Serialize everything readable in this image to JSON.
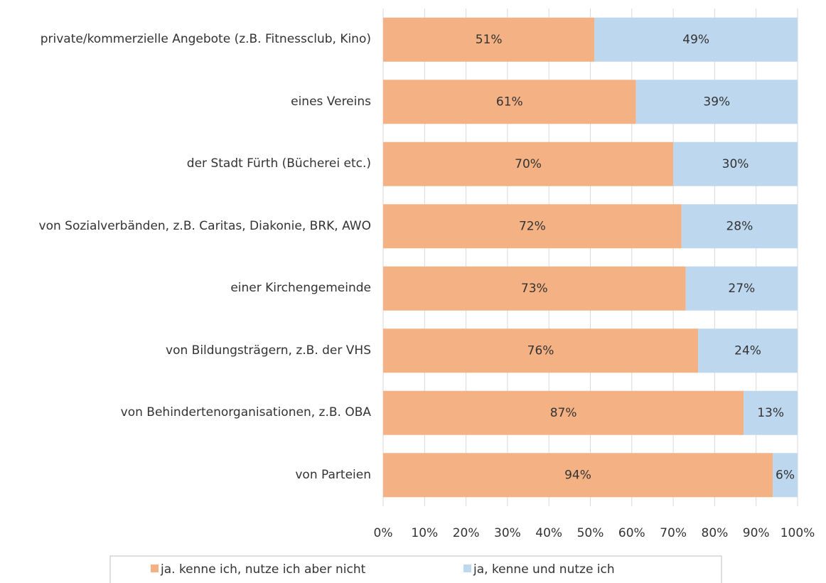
{
  "chart_data": {
    "type": "stacked_barh",
    "categories": [
      "private/kommerzielle Angebote (z.B. Fitnessclub, Kino)",
      "eines Vereins",
      "der Stadt Fürth (Bücherei etc.)",
      "von Sozialverbänden, z.B. Caritas, Diakonie, BRK, AWO",
      "einer Kirchengemeinde",
      "von Bildungsträgern, z.B. der VHS",
      "von Behindertenorganisationen, z.B. OBA",
      "von Parteien"
    ],
    "series": [
      {
        "name": "ja. kenne ich, nutze ich aber nicht",
        "color": "#f4b183",
        "values": [
          51,
          61,
          70,
          72,
          73,
          76,
          87,
          94
        ],
        "value_labels": [
          "51%",
          "61%",
          "70%",
          "72%",
          "73%",
          "76%",
          "87%",
          "94%"
        ]
      },
      {
        "name": "ja, kenne und nutze ich",
        "color": "#bdd7ee",
        "values": [
          49,
          39,
          30,
          28,
          27,
          24,
          13,
          6
        ],
        "value_labels": [
          "49%",
          "39%",
          "30%",
          "28%",
          "27%",
          "24%",
          "13%",
          "6%"
        ]
      }
    ],
    "xlim": [
      0,
      100
    ],
    "xticks": [
      {
        "value": 0,
        "label": "0%"
      },
      {
        "value": 10,
        "label": "10%"
      },
      {
        "value": 20,
        "label": "20%"
      },
      {
        "value": 30,
        "label": "30%"
      },
      {
        "value": 40,
        "label": "40%"
      },
      {
        "value": 50,
        "label": "50%"
      },
      {
        "value": 60,
        "label": "60%"
      },
      {
        "value": 70,
        "label": "70%"
      },
      {
        "value": 80,
        "label": "80%"
      },
      {
        "value": 90,
        "label": "90%"
      },
      {
        "value": 100,
        "label": "100%"
      }
    ],
    "grid": true,
    "legend": "bottom"
  }
}
